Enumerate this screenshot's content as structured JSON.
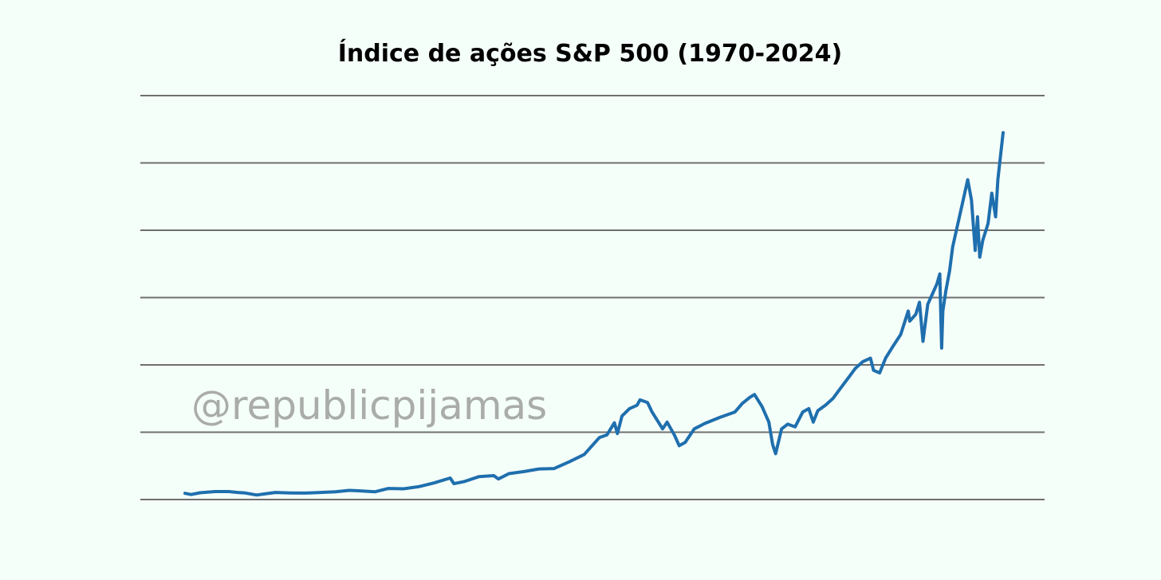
{
  "watermark": "@republicpijamas",
  "colors": {
    "background": "#f5fff9",
    "line": "#1f6fae",
    "grid": "#6f6f6f",
    "watermark": "#a9aca9"
  },
  "chart_data": {
    "type": "line",
    "title": "Índice de ações S&P 500 (1970-2024)",
    "xlabel": "",
    "ylabel": "",
    "xlim": [
      1970,
      2024.3
    ],
    "ylim": [
      0,
      6000
    ],
    "grid": "horizontal",
    "tick_labels_shown": false,
    "series": [
      {
        "x": [
          1970.0,
          1970.4,
          1971.0,
          1972.0,
          1972.9,
          1973.5,
          1974.0,
          1974.75,
          1975.5,
          1976.0,
          1977.0,
          1978.0,
          1979.0,
          1980.0,
          1980.9,
          1981.5,
          1982.6,
          1983.5,
          1984.5,
          1985.5,
          1986.5,
          1987.6,
          1987.85,
          1988.5,
          1989.5,
          1990.5,
          1990.8,
          1991.5,
          1992.5,
          1993.5,
          1994.5,
          1995.5,
          1996.5,
          1997.5,
          1998.0,
          1998.5,
          1998.7,
          1999.0,
          1999.5,
          2000.0,
          2000.2,
          2000.7,
          2001.0,
          2001.7,
          2002.0,
          2002.5,
          2002.8,
          2003.2,
          2003.8,
          2004.5,
          2005.5,
          2006.5,
          2007.0,
          2007.5,
          2007.8,
          2008.3,
          2008.75,
          2009.0,
          2009.2,
          2009.6,
          2010.0,
          2010.5,
          2011.0,
          2011.4,
          2011.7,
          2012.0,
          2012.5,
          2013.0,
          2013.5,
          2014.0,
          2014.5,
          2015.0,
          2015.5,
          2015.7,
          2016.1,
          2016.5,
          2017.0,
          2017.5,
          2018.0,
          2018.1,
          2018.5,
          2018.75,
          2018.98,
          2019.3,
          2019.5,
          2019.9,
          2020.1,
          2020.22,
          2020.3,
          2020.5,
          2020.75,
          2020.95,
          2021.3,
          2021.6,
          2021.95,
          2022.2,
          2022.45,
          2022.6,
          2022.75,
          2022.95,
          2023.3,
          2023.55,
          2023.8,
          2023.95,
          2024.2,
          2024.3
        ],
        "y": [
          92,
          75,
          100,
          118,
          118,
          105,
          97,
          67,
          90,
          105,
          98,
          96,
          105,
          115,
          136,
          130,
          115,
          165,
          160,
          190,
          245,
          320,
          235,
          265,
          340,
          355,
          305,
          385,
          415,
          455,
          460,
          560,
          670,
          920,
          960,
          1140,
          980,
          1240,
          1350,
          1400,
          1480,
          1440,
          1300,
          1050,
          1150,
          950,
          800,
          850,
          1050,
          1130,
          1220,
          1300,
          1430,
          1520,
          1560,
          1380,
          1150,
          820,
          680,
          1050,
          1120,
          1080,
          1300,
          1350,
          1150,
          1320,
          1400,
          1500,
          1650,
          1800,
          1950,
          2050,
          2100,
          1920,
          1880,
          2100,
          2280,
          2450,
          2800,
          2650,
          2750,
          2930,
          2350,
          2900,
          3000,
          3200,
          3350,
          2250,
          2800,
          3100,
          3400,
          3750,
          4100,
          4400,
          4750,
          4450,
          3700,
          4200,
          3600,
          3850,
          4100,
          4550,
          4200,
          4750,
          5250,
          5450
        ]
      }
    ]
  }
}
